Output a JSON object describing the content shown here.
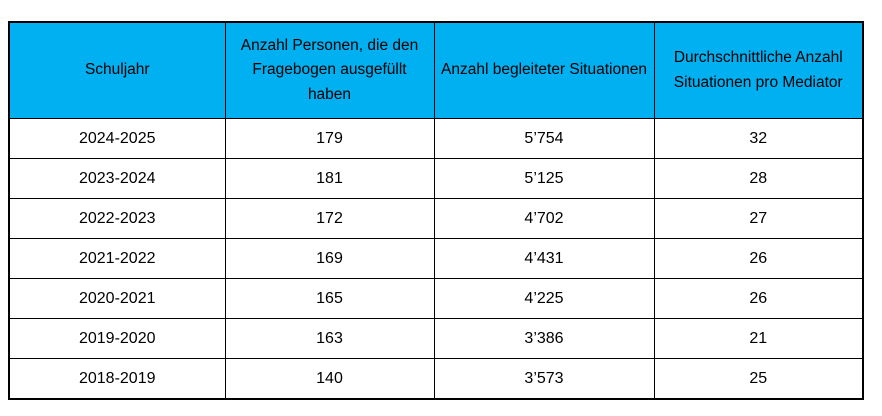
{
  "table": {
    "header_bg": "#00B0F0",
    "columns": [
      "Schuljahr",
      "Anzahl Personen, die den Fragebogen ausgefüllt haben",
      "Anzahl begleiteter Situationen",
      "Durchschnittliche Anzahl Situationen pro Mediator"
    ],
    "rows": [
      [
        "2024-2025",
        "179",
        "5’754",
        "32"
      ],
      [
        "2023-2024",
        "181",
        "5’125",
        "28"
      ],
      [
        "2022-2023",
        "172",
        "4’702",
        "27"
      ],
      [
        "2021-2022",
        "169",
        "4’431",
        "26"
      ],
      [
        "2020-2021",
        "165",
        "4’225",
        "26"
      ],
      [
        "2019-2020",
        "163",
        "3’386",
        "21"
      ],
      [
        "2018-2019",
        "140",
        "3’573",
        "25"
      ]
    ]
  }
}
